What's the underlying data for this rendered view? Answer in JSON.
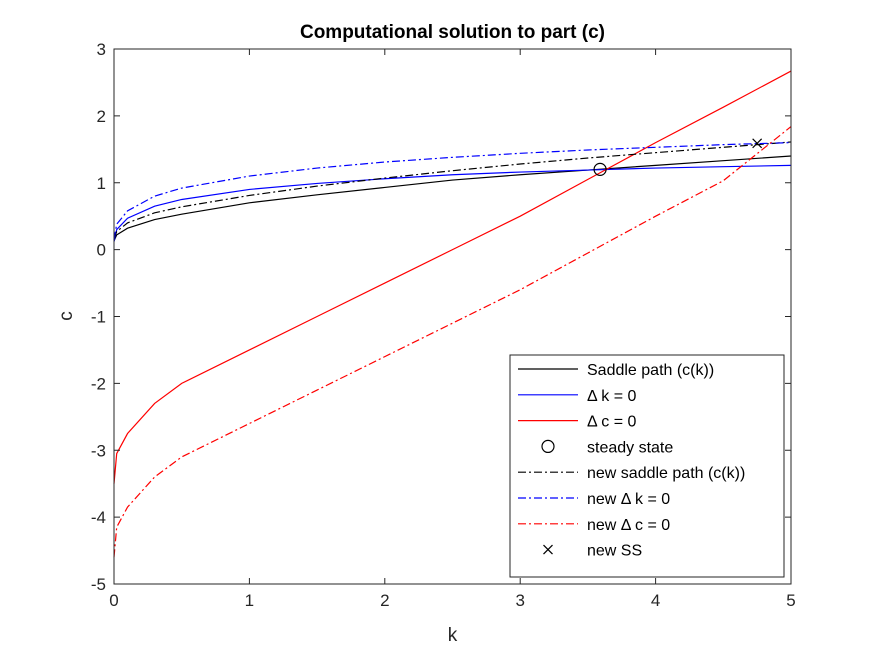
{
  "chart_data": {
    "type": "line",
    "title": "Computational solution to part (c)",
    "xlabel": "k",
    "ylabel": "c",
    "xlim": [
      0,
      5
    ],
    "ylim": [
      -5,
      3
    ],
    "xticks": [
      "0",
      "1",
      "2",
      "3",
      "4",
      "5"
    ],
    "yticks": [
      "-5",
      "-4",
      "-3",
      "-2",
      "-1",
      "0",
      "1",
      "2",
      "3"
    ],
    "grid": false,
    "legend_position": "bottom-right",
    "colors": {
      "black": "#000000",
      "blue": "#0000ff",
      "red": "#ff0000"
    },
    "series": [
      {
        "name": "Saddle path (c(k))",
        "style": "solid",
        "color": "#000000",
        "x": [
          0,
          0.02,
          0.1,
          0.3,
          0.5,
          1.0,
          1.5,
          2.0,
          2.5,
          3.0,
          3.5,
          4.0,
          4.5,
          5.0
        ],
        "y": [
          0.13,
          0.22,
          0.32,
          0.45,
          0.53,
          0.7,
          0.82,
          0.93,
          1.04,
          1.12,
          1.19,
          1.26,
          1.33,
          1.4
        ]
      },
      {
        "name": "Δ k = 0",
        "style": "solid",
        "color": "#0000ff",
        "x": [
          0,
          0.02,
          0.1,
          0.3,
          0.5,
          1.0,
          1.5,
          2.0,
          2.5,
          3.0,
          3.5,
          4.0,
          4.5,
          5.0
        ],
        "y": [
          0.12,
          0.3,
          0.47,
          0.65,
          0.75,
          0.9,
          0.99,
          1.06,
          1.12,
          1.16,
          1.19,
          1.22,
          1.24,
          1.26
        ]
      },
      {
        "name": "Δ c = 0",
        "style": "solid",
        "color": "#ff0000",
        "x": [
          0,
          0.02,
          0.1,
          0.3,
          0.5,
          1.0,
          1.5,
          2.0,
          2.5,
          3.0,
          3.5,
          4.0,
          4.5,
          5.0
        ],
        "y": [
          -3.5,
          -3.05,
          -2.75,
          -2.3,
          -2.0,
          -1.5,
          -1.0,
          -0.5,
          0.0,
          0.5,
          1.05,
          1.6,
          2.13,
          2.67
        ]
      },
      {
        "name": "new saddle path (c(k))",
        "style": "dashdot",
        "color": "#000000",
        "x": [
          0,
          0.02,
          0.1,
          0.3,
          0.5,
          1.0,
          1.5,
          2.0,
          2.5,
          3.0,
          3.5,
          4.0,
          4.5,
          5.0
        ],
        "y": [
          0.16,
          0.27,
          0.4,
          0.55,
          0.64,
          0.81,
          0.95,
          1.07,
          1.18,
          1.28,
          1.37,
          1.45,
          1.53,
          1.61
        ]
      },
      {
        "name": "new Δ k = 0",
        "style": "dashdot",
        "color": "#0000ff",
        "x": [
          0,
          0.02,
          0.1,
          0.3,
          0.5,
          1.0,
          1.5,
          2.0,
          2.5,
          3.0,
          3.5,
          4.0,
          4.5,
          5.0
        ],
        "y": [
          0.15,
          0.38,
          0.58,
          0.8,
          0.92,
          1.1,
          1.22,
          1.31,
          1.38,
          1.44,
          1.49,
          1.53,
          1.57,
          1.6
        ]
      },
      {
        "name": "new Δ c = 0",
        "style": "dashdot",
        "color": "#ff0000",
        "x": [
          0,
          0.02,
          0.1,
          0.3,
          0.5,
          1.0,
          1.5,
          2.0,
          2.5,
          3.0,
          3.5,
          4.0,
          4.5,
          5.0
        ],
        "y": [
          -4.6,
          -4.15,
          -3.85,
          -3.4,
          -3.1,
          -2.6,
          -2.1,
          -1.6,
          -1.1,
          -0.6,
          -0.05,
          0.5,
          1.03,
          1.84
        ]
      }
    ],
    "markers": [
      {
        "name": "steady state",
        "symbol": "circle",
        "x": 3.59,
        "y": 1.2,
        "color": "#000000"
      },
      {
        "name": "new SS",
        "symbol": "cross",
        "x": 4.75,
        "y": 1.59,
        "color": "#000000"
      }
    ],
    "legend": [
      {
        "label": "Saddle path (c(k))",
        "kind": "line",
        "style": "solid",
        "color": "#000000"
      },
      {
        "label": "Δ k = 0",
        "kind": "line",
        "style": "solid",
        "color": "#0000ff"
      },
      {
        "label": "Δ c = 0",
        "kind": "line",
        "style": "solid",
        "color": "#ff0000"
      },
      {
        "label": "steady state",
        "kind": "marker",
        "symbol": "circle",
        "color": "#000000"
      },
      {
        "label": "new saddle path (c(k))",
        "kind": "line",
        "style": "dashdot",
        "color": "#000000"
      },
      {
        "label": "new Δ k = 0",
        "kind": "line",
        "style": "dashdot",
        "color": "#0000ff"
      },
      {
        "label": "new Δ c = 0",
        "kind": "line",
        "style": "dashdot",
        "color": "#ff0000"
      },
      {
        "label": "new SS",
        "kind": "marker",
        "symbol": "cross",
        "color": "#000000"
      }
    ]
  }
}
